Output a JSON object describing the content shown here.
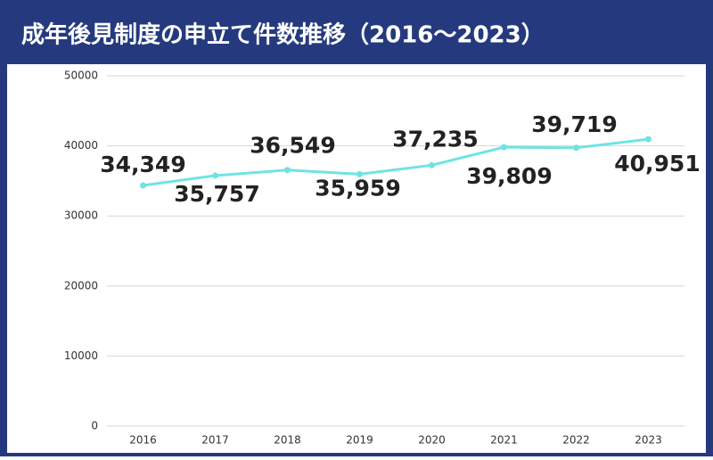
{
  "chart_data": {
    "type": "line",
    "title": "成年後見制度の申立て件数推移（2016〜2023）",
    "categories": [
      "2016",
      "2017",
      "2018",
      "2019",
      "2020",
      "2021",
      "2022",
      "2023"
    ],
    "series": [
      {
        "color": "#6fe3e3",
        "values": [
          34349,
          35757,
          36549,
          35959,
          37235,
          39809,
          39719,
          40951
        ],
        "value_labels": [
          "34,349",
          "35,757",
          "36,549",
          "35,959",
          "37,235",
          "39,809",
          "39,719",
          "40,951"
        ]
      }
    ],
    "ylim": [
      0,
      50000
    ],
    "yticks": [
      0,
      10000,
      20000,
      30000,
      40000,
      50000
    ],
    "grid": true
  }
}
